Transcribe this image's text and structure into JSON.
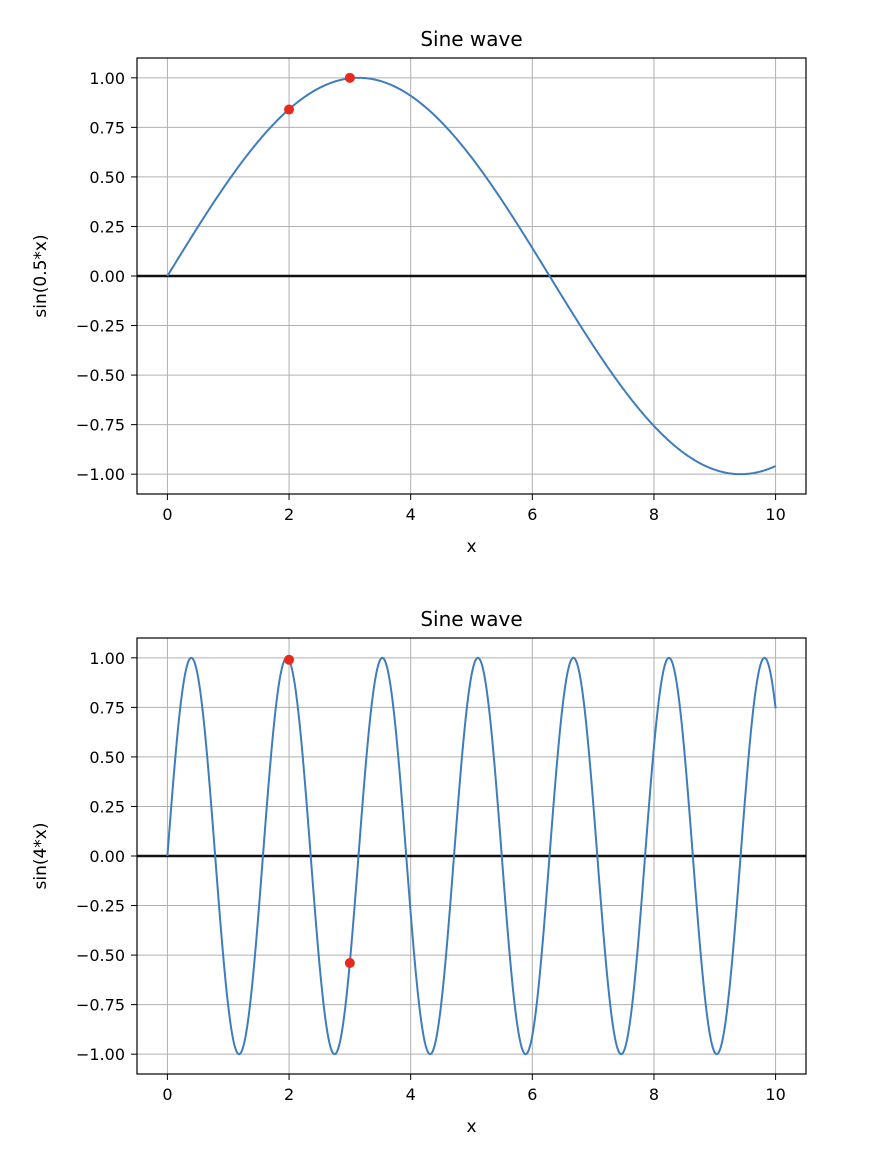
{
  "chart_data": [
    {
      "type": "line",
      "title": "Sine wave",
      "xlabel": "x",
      "ylabel": "sin(0.5*x)",
      "function": "sin(0.5*x)",
      "x_range": [
        0,
        10
      ],
      "xlim": [
        -0.5,
        10.5
      ],
      "ylim": [
        -1.1,
        1.1
      ],
      "xticks": [
        0,
        2,
        4,
        6,
        8,
        10
      ],
      "xtick_labels": [
        "0",
        "2",
        "4",
        "6",
        "8",
        "10"
      ],
      "yticks": [
        1.0,
        0.75,
        0.5,
        0.25,
        0.0,
        -0.25,
        -0.5,
        -0.75,
        -1.0
      ],
      "ytick_labels": [
        "1.00",
        "0.75",
        "0.50",
        "0.25",
        "0.00",
        "−0.25",
        "−0.50",
        "−0.75",
        "−1.00"
      ],
      "grid": true,
      "zero_line": true,
      "series": [
        {
          "color": "#3e7dbd",
          "kind": "curve"
        }
      ],
      "points": [
        {
          "x": 2,
          "y": 0.84
        },
        {
          "x": 3,
          "y": 1.0
        }
      ],
      "point_color": "#e8291c"
    },
    {
      "type": "line",
      "title": "Sine wave",
      "xlabel": "x",
      "ylabel": "sin(4*x)",
      "function": "sin(4*x)",
      "x_range": [
        0,
        10
      ],
      "xlim": [
        -0.5,
        10.5
      ],
      "ylim": [
        -1.1,
        1.1
      ],
      "xticks": [
        0,
        2,
        4,
        6,
        8,
        10
      ],
      "xtick_labels": [
        "0",
        "2",
        "4",
        "6",
        "8",
        "10"
      ],
      "yticks": [
        1.0,
        0.75,
        0.5,
        0.25,
        0.0,
        -0.25,
        -0.5,
        -0.75,
        -1.0
      ],
      "ytick_labels": [
        "1.00",
        "0.75",
        "0.50",
        "0.25",
        "0.00",
        "−0.25",
        "−0.50",
        "−0.75",
        "−1.00"
      ],
      "grid": true,
      "zero_line": true,
      "series": [
        {
          "color": "#3e7dbd",
          "kind": "curve"
        }
      ],
      "points": [
        {
          "x": 2,
          "y": 0.99
        },
        {
          "x": 3,
          "y": -0.54
        }
      ],
      "point_color": "#e8291c"
    }
  ]
}
